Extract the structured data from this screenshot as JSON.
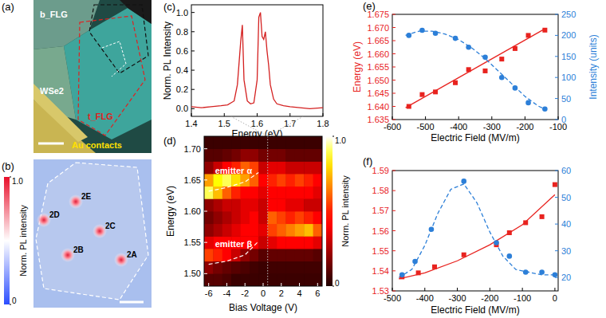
{
  "images": [
    {
      "panel_label": "(a)",
      "labels": [
        "b_FLG",
        "WSe2",
        "t_FLG",
        "Au contacts"
      ]
    },
    {
      "panel_label": "(b)",
      "spots": [
        "2E",
        "2D",
        "2C",
        "2B",
        "2A"
      ],
      "colorbar": {
        "label": "Norm. PL intensity",
        "range": [
          0,
          1
        ],
        "ticks": [
          0,
          {
            "value": 1,
            "label": "1.0"
          }
        ]
      }
    }
  ],
  "chart_data": [
    {
      "panel_label": "(c)",
      "type": "line",
      "x_label": "Energy (eV)",
      "y_label": "Norm. PL Intensity",
      "color": "#d42020",
      "x": [
        1.4,
        1.43,
        1.46,
        1.49,
        1.51,
        1.53,
        1.54,
        1.55,
        1.555,
        1.56,
        1.57,
        1.58,
        1.59,
        1.6,
        1.605,
        1.61,
        1.615,
        1.62,
        1.625,
        1.63,
        1.635,
        1.64,
        1.65,
        1.66,
        1.68,
        1.7,
        1.73,
        1.76,
        1.8
      ],
      "values": [
        0.02,
        0.01,
        0.02,
        0.03,
        0.04,
        0.08,
        0.25,
        0.7,
        0.87,
        0.3,
        0.08,
        0.05,
        0.06,
        0.3,
        0.95,
        1.0,
        0.75,
        0.72,
        0.8,
        0.6,
        0.45,
        0.25,
        0.1,
        0.05,
        0.03,
        0.02,
        0.01,
        0.0,
        0.01
      ],
      "xlim": [
        1.4,
        1.8
      ],
      "ylim": [
        -0.08,
        1.08
      ],
      "xticks": [
        1.4,
        1.5,
        1.6,
        1.7,
        1.8
      ],
      "yticks": [
        {
          "value": 0,
          "label": "0.0"
        },
        0.2,
        0.4,
        0.6,
        0.8,
        {
          "value": 1,
          "label": "1.0"
        }
      ]
    },
    {
      "panel_label": "(d)",
      "type": "heatmap",
      "x_label": "Bias Voltage (V)",
      "y_label": "Energy (eV)",
      "x": [
        -6,
        -5,
        -4,
        -3,
        -2,
        -1,
        0,
        1,
        2,
        3,
        4,
        5,
        6
      ],
      "y": [
        1.49,
        1.51,
        1.53,
        1.55,
        1.57,
        1.59,
        1.61,
        1.63,
        1.65,
        1.67,
        1.69,
        1.71
      ],
      "cells": [
        [
          0.1,
          0.1,
          0.08,
          0.05,
          0.05,
          0.05,
          0.05,
          0.05,
          0.05,
          0.05,
          0.05,
          0.05,
          0.05
        ],
        [
          0.2,
          0.15,
          0.12,
          0.1,
          0.08,
          0.06,
          0.05,
          0.06,
          0.06,
          0.06,
          0.06,
          0.06,
          0.06
        ],
        [
          0.55,
          0.5,
          0.4,
          0.3,
          0.2,
          0.15,
          0.1,
          0.12,
          0.12,
          0.12,
          0.12,
          0.12,
          0.1
        ],
        [
          0.35,
          0.4,
          0.45,
          0.45,
          0.45,
          0.4,
          0.3,
          0.35,
          0.4,
          0.45,
          0.45,
          0.4,
          0.35
        ],
        [
          0.2,
          0.25,
          0.3,
          0.35,
          0.4,
          0.45,
          0.35,
          0.55,
          0.6,
          0.65,
          0.7,
          0.75,
          0.6
        ],
        [
          0.15,
          0.2,
          0.25,
          0.3,
          0.35,
          0.4,
          0.3,
          0.6,
          0.55,
          0.5,
          0.55,
          0.5,
          0.45
        ],
        [
          0.2,
          0.25,
          0.3,
          0.3,
          0.35,
          0.35,
          0.3,
          0.4,
          0.4,
          0.35,
          0.35,
          0.3,
          0.3
        ],
        [
          0.9,
          0.75,
          0.6,
          0.5,
          0.45,
          0.4,
          0.35,
          0.45,
          0.4,
          0.45,
          0.4,
          0.4,
          0.35
        ],
        [
          0.7,
          0.85,
          0.9,
          0.8,
          0.7,
          0.6,
          0.4,
          0.5,
          0.55,
          0.5,
          0.55,
          0.5,
          0.45
        ],
        [
          0.2,
          0.3,
          0.4,
          0.5,
          0.6,
          0.55,
          0.3,
          0.35,
          0.35,
          0.3,
          0.3,
          0.3,
          0.3
        ],
        [
          0.1,
          0.1,
          0.12,
          0.15,
          0.2,
          0.2,
          0.15,
          0.15,
          0.15,
          0.12,
          0.12,
          0.12,
          0.12
        ],
        [
          0.05,
          0.05,
          0.05,
          0.05,
          0.05,
          0.05,
          0.05,
          0.05,
          0.05,
          0.05,
          0.05,
          0.05,
          0.05
        ]
      ],
      "xlim": [
        -6.5,
        6.5
      ],
      "ylim": [
        1.48,
        1.72
      ],
      "xticks": [
        -6,
        -4,
        -2,
        0,
        2,
        4,
        6
      ],
      "yticks": [
        {
          "value": 1.5,
          "label": "1.50"
        },
        1.55,
        {
          "value": 1.6,
          "label": "1.60"
        },
        1.65,
        {
          "value": 1.7,
          "label": "1.70"
        }
      ],
      "colorbar": {
        "label": "Norm. PL intensity",
        "range": [
          0,
          1
        ],
        "ticks": [
          0,
          {
            "value": 1,
            "label": "1.0"
          }
        ]
      },
      "cut_x": 0.5,
      "guides": [
        {
          "label": "emitter α",
          "x": [
            -6,
            -4,
            -2,
            -0.5
          ],
          "y": [
            1.632,
            1.638,
            1.647,
            1.662
          ]
        },
        {
          "label": "emitter β",
          "x": [
            -6,
            -4,
            -2,
            -0.5
          ],
          "y": [
            1.515,
            1.52,
            1.53,
            1.552
          ]
        }
      ]
    },
    {
      "panel_label": "(e)",
      "type": "scatter",
      "x_label": "Electric Field (MV/m)",
      "y_label": "Energy (eV)",
      "y2_label": "Intensity (units)",
      "xlim": [
        -600,
        -100
      ],
      "ylim": [
        1.635,
        1.675
      ],
      "y2lim": [
        0,
        250
      ],
      "xticks": [
        -600,
        -500,
        -400,
        -300,
        -200,
        -100
      ],
      "yticks": [
        1.635,
        {
          "value": 1.64,
          "label": "1.640"
        },
        1.645,
        {
          "value": 1.65,
          "label": "1.650"
        },
        1.655,
        {
          "value": 1.66,
          "label": "1.660"
        },
        1.665,
        {
          "value": 1.67,
          "label": "1.670"
        },
        1.675
      ],
      "y2ticks": [
        0,
        50,
        100,
        150,
        200,
        250
      ],
      "series": [
        {
          "color": "#e8231f",
          "marker": "square",
          "x": [
            -550,
            -510,
            -470,
            -410,
            -370,
            -320,
            -270,
            -230,
            -190,
            -140
          ],
          "values": [
            1.64,
            1.6445,
            1.6455,
            1.649,
            1.654,
            1.6535,
            1.658,
            1.662,
            1.667,
            1.669
          ]
        },
        {
          "type": "line",
          "line_style": "solid",
          "color": "#e8231f",
          "x": [
            -560,
            -140
          ],
          "values": [
            1.6395,
            1.6695
          ]
        },
        {
          "axis": "y2",
          "color": "#2c7fd8",
          "marker": "circle",
          "x": [
            -550,
            -510,
            -470,
            -410,
            -370,
            -320,
            -270,
            -230,
            -190,
            -140
          ],
          "values": [
            200,
            212,
            205,
            193,
            172,
            148,
            100,
            75,
            40,
            25
          ]
        },
        {
          "axis": "y2",
          "type": "line",
          "line_style": "dashed",
          "color": "#2c7fd8",
          "x": [
            -560,
            -520,
            -480,
            -440,
            -400,
            -360,
            -320,
            -280,
            -240,
            -200,
            -160,
            -140
          ],
          "values": [
            200,
            210,
            210,
            203,
            190,
            170,
            145,
            115,
            85,
            55,
            32,
            25
          ]
        }
      ]
    },
    {
      "panel_label": "(f)",
      "type": "scatter",
      "x_label": "Electric Field (MV/m)",
      "xlim": [
        -500,
        10
      ],
      "ylim": [
        1.53,
        1.59
      ],
      "y2lim": [
        15,
        60
      ],
      "xticks": [
        -500,
        -400,
        -300,
        -200,
        -100,
        0
      ],
      "yticks": [
        1.53,
        1.54,
        1.55,
        1.56,
        1.57,
        1.58,
        1.59
      ],
      "y2ticks": [
        20,
        30,
        40,
        50,
        60
      ],
      "series": [
        {
          "color": "#e8231f",
          "marker": "square",
          "x": [
            -470,
            -420,
            -370,
            -280,
            -180,
            -140,
            -90,
            -40,
            0
          ],
          "values": [
            1.537,
            1.539,
            1.542,
            1.548,
            1.553,
            1.559,
            1.564,
            1.567,
            1.583
          ]
        },
        {
          "type": "line",
          "line_style": "solid",
          "color": "#e8231f",
          "x": [
            -480,
            -400,
            -300,
            -200,
            -100,
            0
          ],
          "values": [
            1.536,
            1.539,
            1.545,
            1.553,
            1.563,
            1.578
          ]
        },
        {
          "axis": "y2",
          "color": "#2c7fd8",
          "marker": "circle",
          "x": [
            -470,
            -430,
            -380,
            -280,
            -180,
            -140,
            -90,
            -40,
            0
          ],
          "values": [
            21,
            26,
            38,
            56,
            33,
            28,
            22,
            22,
            21
          ]
        },
        {
          "axis": "y2",
          "type": "line",
          "line_style": "dashed",
          "color": "#2c7fd8",
          "x": [
            -480,
            -440,
            -400,
            -360,
            -320,
            -280,
            -240,
            -200,
            -160,
            -120,
            -80,
            -40,
            0
          ],
          "values": [
            20,
            23,
            32,
            44,
            53,
            55,
            48,
            37,
            28,
            23,
            22,
            21,
            21
          ]
        }
      ]
    }
  ]
}
